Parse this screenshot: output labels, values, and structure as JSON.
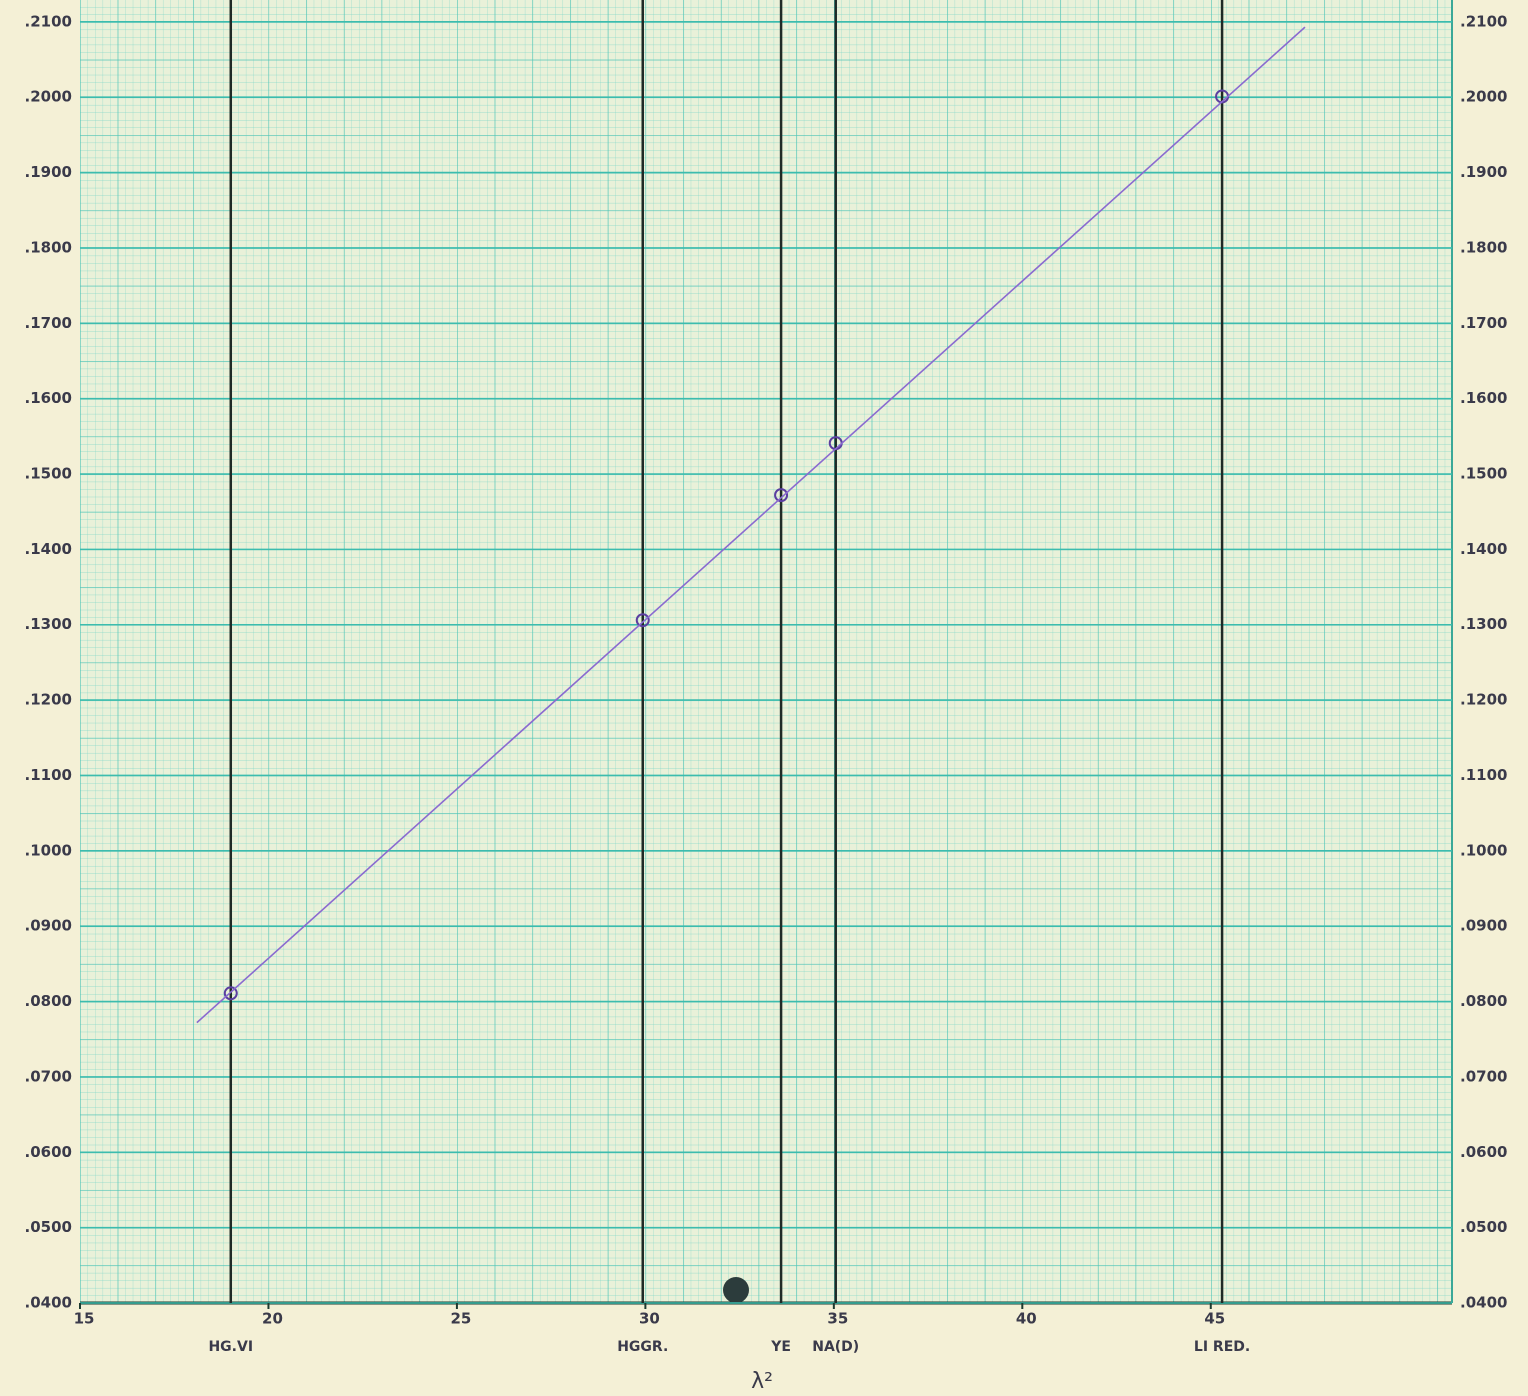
{
  "chart_data": {
    "type": "scatter",
    "x_label": "λ²",
    "xlim": [
      15,
      51.4
    ],
    "xticks": [
      15,
      20,
      25,
      30,
      35,
      40,
      45
    ],
    "ylim": [
      0.04,
      0.2129
    ],
    "yticks": [
      {
        "value": 0.04,
        "label": ".0400"
      },
      {
        "value": 0.05,
        "label": ".0500"
      },
      {
        "value": 0.06,
        "label": ".0600"
      },
      {
        "value": 0.07,
        "label": ".0700"
      },
      {
        "value": 0.08,
        "label": ".0800"
      },
      {
        "value": 0.09,
        "label": ".0900"
      },
      {
        "value": 0.1,
        "label": ".1000"
      },
      {
        "value": 0.11,
        "label": ".1100"
      },
      {
        "value": 0.12,
        "label": ".1200"
      },
      {
        "value": 0.13,
        "label": ".1300"
      },
      {
        "value": 0.14,
        "label": ".1400"
      },
      {
        "value": 0.15,
        "label": ".1500"
      },
      {
        "value": 0.16,
        "label": ".1600"
      },
      {
        "value": 0.17,
        "label": ".1700"
      },
      {
        "value": 0.18,
        "label": ".1800"
      },
      {
        "value": 0.19,
        "label": ".1900"
      },
      {
        "value": 0.2,
        "label": ".2000"
      },
      {
        "value": 0.21,
        "label": ".2100"
      }
    ],
    "grid": true,
    "reference_lines": [
      {
        "x": 19.0,
        "label": "HG.VI"
      },
      {
        "x": 29.93,
        "label": "HGGR."
      },
      {
        "x": 33.6,
        "label": "YE"
      },
      {
        "x": 35.05,
        "label": "NA(D)"
      },
      {
        "x": 45.3,
        "label": "LI RED."
      }
    ],
    "series": [
      {
        "color": "#5b3fa0",
        "marker": "circle",
        "x": [
          19.0,
          29.93,
          33.6,
          35.05,
          45.3
        ],
        "values": [
          0.0811,
          0.1306,
          0.1472,
          0.1541,
          0.2001
        ]
      },
      {
        "color": "#8a6ad0",
        "marker": "line",
        "x": [
          18.1,
          47.5
        ],
        "values": [
          0.0772,
          0.2093
        ]
      }
    ]
  }
}
